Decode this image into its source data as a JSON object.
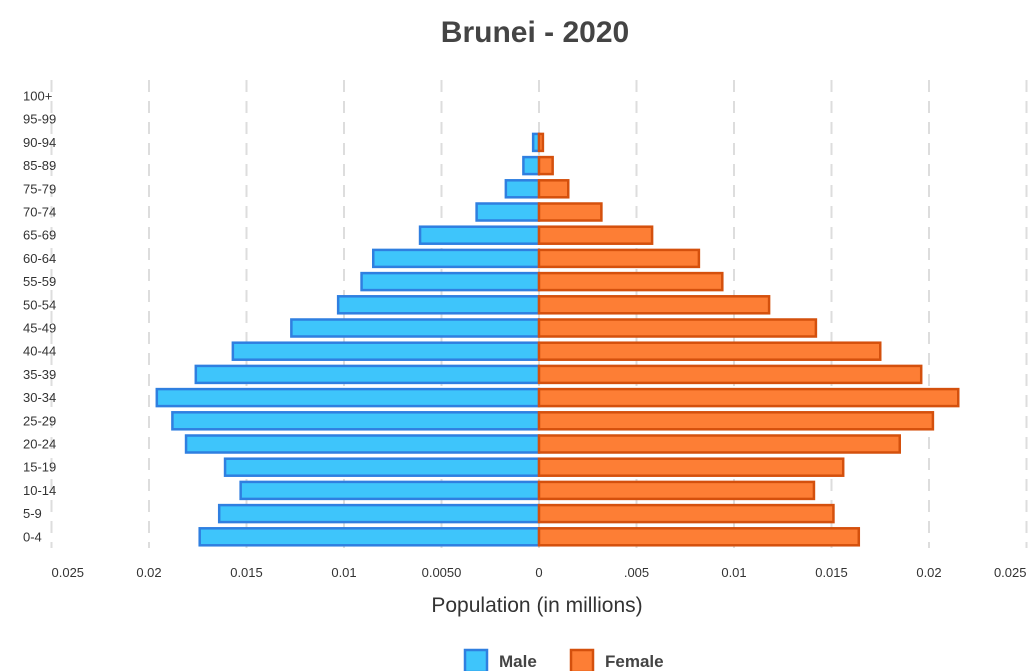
{
  "chart_data": {
    "type": "bar",
    "orientation": "horizontal",
    "title": "Brunei - 2020",
    "xlabel": "Population (in millions)",
    "ylabel": "",
    "xlim": [
      -0.025,
      0.025
    ],
    "x_tick_labels": [
      "0.025",
      "0.02",
      "0.015",
      "0.01",
      "0.0050",
      "0",
      ".005",
      "0.01",
      "0.015",
      "0.02",
      "0.025"
    ],
    "categories": [
      "0-4",
      "5-9",
      "10-14",
      "15-19",
      "20-24",
      "25-29",
      "30-34",
      "35-39",
      "40-44",
      "45-49",
      "50-54",
      "55-59",
      "60-64",
      "65-69",
      "70-74",
      "75-79",
      "85-89",
      "90-94",
      "95-99",
      "100+"
    ],
    "series": [
      {
        "name": "Male",
        "color": "#3ec5fb",
        "border": "#2f7fe0",
        "values": [
          0.0174,
          0.0164,
          0.0153,
          0.0161,
          0.0181,
          0.0188,
          0.0196,
          0.0176,
          0.0157,
          0.0127,
          0.0103,
          0.0091,
          0.0085,
          0.0061,
          0.0032,
          0.0017,
          0.0008,
          0.0003,
          0,
          0
        ]
      },
      {
        "name": "Female",
        "color": "#fd7e35",
        "border": "#d4500d",
        "values": [
          0.0164,
          0.0151,
          0.0141,
          0.0156,
          0.0185,
          0.0202,
          0.0215,
          0.0196,
          0.0175,
          0.0142,
          0.0118,
          0.0094,
          0.0082,
          0.0058,
          0.0032,
          0.0015,
          0.0007,
          0.0002,
          0,
          0
        ]
      }
    ],
    "grid": true,
    "legend_position": "bottom-center"
  }
}
